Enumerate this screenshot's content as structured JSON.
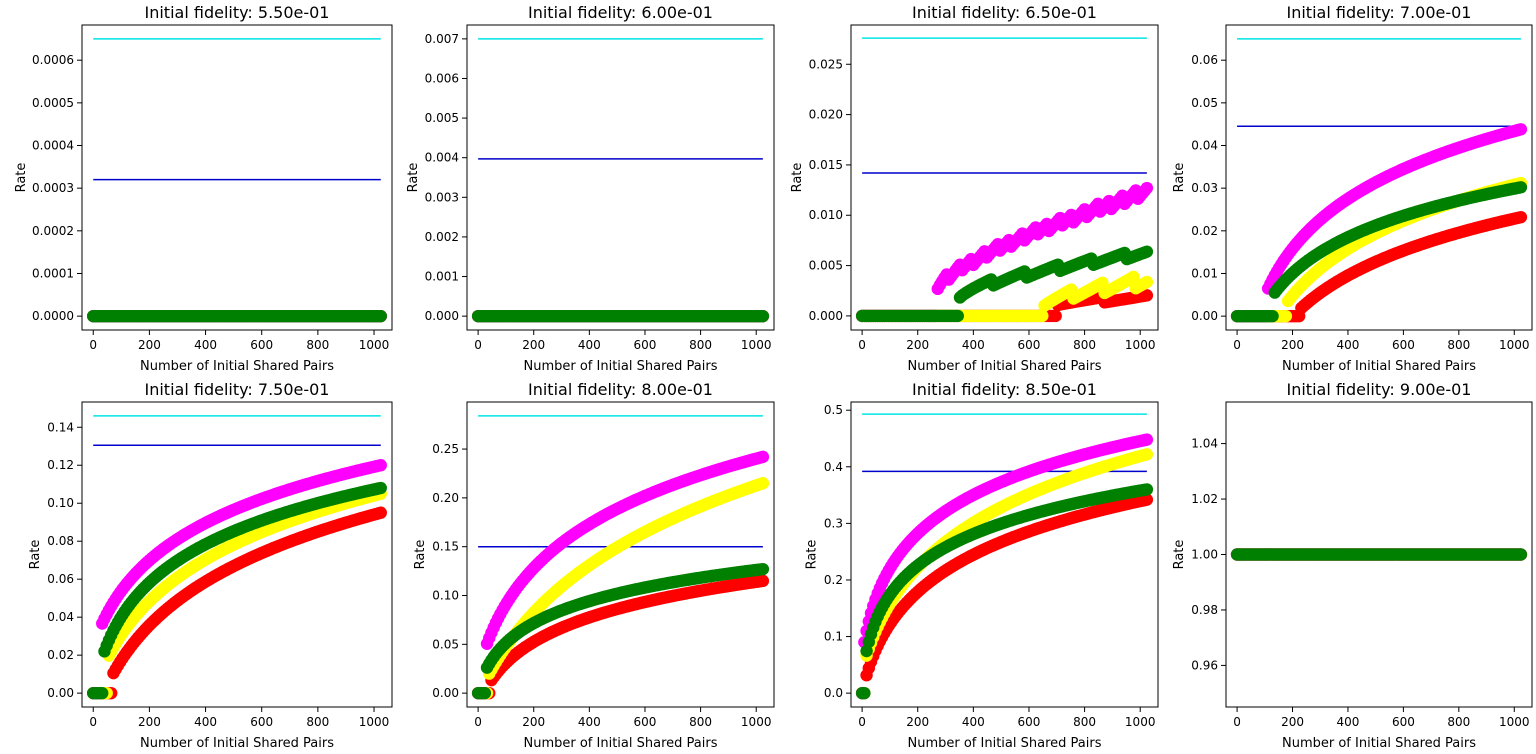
{
  "colors": {
    "magenta": "#ff00ff",
    "yellow": "#ffff00",
    "green": "#008000",
    "red": "#ff0000",
    "cyan": "#00e5e5",
    "blue": "#0000cc"
  },
  "chart_data": [
    {
      "type": "scatter",
      "title": "Initial fidelity: 5.50e-01",
      "xlabel": "Number of Initial Shared Pairs",
      "ylabel": "Rate",
      "xlim": [
        -40,
        1064
      ],
      "ylim": [
        -3.25e-05,
        0.0006825
      ],
      "xticks": [
        0,
        200,
        400,
        600,
        800,
        1000
      ],
      "xtick_labels": [
        "0",
        "200",
        "400",
        "600",
        "800",
        "1000"
      ],
      "yticks": [
        0,
        0.0001,
        0.0002,
        0.0003,
        0.0004,
        0.0005,
        0.0006
      ],
      "ytick_labels": [
        "0.0000",
        "0.0001",
        "0.0002",
        "0.0003",
        "0.0004",
        "0.0005",
        "0.0006"
      ],
      "hlines": [
        {
          "name": "cyan",
          "color": "cyan",
          "y": 0.00065,
          "x": [
            0,
            1024
          ]
        },
        {
          "name": "blue",
          "color": "blue",
          "y": 0.00032,
          "x": [
            0,
            1024
          ]
        }
      ],
      "series": [
        {
          "name": "red",
          "color": "red",
          "x0": 0,
          "curve": {
            "kind": "constant",
            "value": 0
          }
        },
        {
          "name": "yellow",
          "color": "yellow",
          "x0": 0,
          "curve": {
            "kind": "constant",
            "value": 0
          }
        },
        {
          "name": "magenta",
          "color": "magenta",
          "x0": 0,
          "curve": {
            "kind": "constant",
            "value": 0
          }
        },
        {
          "name": "green",
          "color": "green",
          "x0": 0,
          "curve": {
            "kind": "constant",
            "value": 0
          }
        }
      ]
    },
    {
      "type": "scatter",
      "title": "Initial fidelity: 6.00e-01",
      "xlabel": "Number of Initial Shared Pairs",
      "ylabel": "Rate",
      "xlim": [
        -40,
        1064
      ],
      "ylim": [
        -0.00035,
        0.00735
      ],
      "xticks": [
        0,
        200,
        400,
        600,
        800,
        1000
      ],
      "xtick_labels": [
        "0",
        "200",
        "400",
        "600",
        "800",
        "1000"
      ],
      "yticks": [
        0,
        0.001,
        0.002,
        0.003,
        0.004,
        0.005,
        0.006,
        0.007
      ],
      "ytick_labels": [
        "0.000",
        "0.001",
        "0.002",
        "0.003",
        "0.004",
        "0.005",
        "0.006",
        "0.007"
      ],
      "hlines": [
        {
          "name": "cyan",
          "color": "cyan",
          "y": 0.007,
          "x": [
            0,
            1024
          ]
        },
        {
          "name": "blue",
          "color": "blue",
          "y": 0.00397,
          "x": [
            0,
            1024
          ]
        }
      ],
      "series": [
        {
          "name": "red",
          "color": "red",
          "x0": 0,
          "curve": {
            "kind": "constant",
            "value": 0
          }
        },
        {
          "name": "yellow",
          "color": "yellow",
          "x0": 0,
          "curve": {
            "kind": "constant",
            "value": 0
          }
        },
        {
          "name": "magenta",
          "color": "magenta",
          "x0": 0,
          "curve": {
            "kind": "constant",
            "value": 0
          }
        },
        {
          "name": "green",
          "color": "green",
          "x0": 0,
          "curve": {
            "kind": "constant",
            "value": 0
          }
        }
      ]
    },
    {
      "type": "scatter",
      "title": "Initial fidelity: 6.50e-01",
      "xlabel": "Number of Initial Shared Pairs",
      "ylabel": "Rate",
      "xlim": [
        -40,
        1064
      ],
      "ylim": [
        -0.0014,
        0.0289
      ],
      "xticks": [
        0,
        200,
        400,
        600,
        800,
        1000
      ],
      "xtick_labels": [
        "0",
        "200",
        "400",
        "600",
        "800",
        "1000"
      ],
      "yticks": [
        0,
        0.005,
        0.01,
        0.015,
        0.02,
        0.025
      ],
      "ytick_labels": [
        "0.000",
        "0.005",
        "0.010",
        "0.015",
        "0.020",
        "0.025"
      ],
      "hlines": [
        {
          "name": "cyan",
          "color": "cyan",
          "y": 0.0276,
          "x": [
            0,
            1024
          ]
        },
        {
          "name": "blue",
          "color": "blue",
          "y": 0.0142,
          "x": [
            0,
            1024
          ]
        }
      ],
      "series": [
        {
          "name": "red",
          "color": "red",
          "x0": 0,
          "curve": {
            "kind": "stair",
            "t0": 700,
            "a0": 0.0013,
            "a1": 0.0018,
            "per": 170,
            "s0": 0.0005,
            "s1": 0.0006
          }
        },
        {
          "name": "yellow",
          "color": "yellow",
          "x0": 0,
          "curve": {
            "kind": "stair",
            "t0": 650,
            "a0": 0.0013,
            "a1": 0.0035,
            "per": 110,
            "s0": 0.0009,
            "s1": 0.0013
          }
        },
        {
          "name": "magenta",
          "color": "magenta",
          "x0": 0,
          "curve": {
            "kind": "stair",
            "t0": 265,
            "a0": 0.0026,
            "a1": 0.0123,
            "per": 45,
            "s0": 0.0008,
            "s1": 0.0011
          }
        },
        {
          "name": "green",
          "color": "green",
          "x0": 0,
          "curve": {
            "kind": "stair",
            "t0": 350,
            "a0": 0.0021,
            "a1": 0.0063,
            "per": 120,
            "s0": 0.0007,
            "s1": 0.0007
          }
        }
      ]
    },
    {
      "type": "scatter",
      "title": "Initial fidelity: 7.00e-01",
      "xlabel": "Number of Initial Shared Pairs",
      "ylabel": "Rate",
      "xlim": [
        -40,
        1064
      ],
      "ylim": [
        -0.00325,
        0.06825
      ],
      "xticks": [
        0,
        200,
        400,
        600,
        800,
        1000
      ],
      "xtick_labels": [
        "0",
        "200",
        "400",
        "600",
        "800",
        "1000"
      ],
      "yticks": [
        0,
        0.01,
        0.02,
        0.03,
        0.04,
        0.05,
        0.06
      ],
      "ytick_labels": [
        "0.00",
        "0.01",
        "0.02",
        "0.03",
        "0.04",
        "0.05",
        "0.06"
      ],
      "hlines": [
        {
          "name": "cyan",
          "color": "cyan",
          "y": 0.065,
          "x": [
            0,
            1024
          ]
        },
        {
          "name": "blue",
          "color": "blue",
          "y": 0.0445,
          "x": [
            0,
            1024
          ]
        }
      ],
      "series": [
        {
          "name": "red",
          "color": "red",
          "x0": 0,
          "curve": {
            "kind": "log",
            "t0": 225,
            "v0": 0.0015,
            "v1": 0.0232,
            "k": 0.004
          }
        },
        {
          "name": "yellow",
          "color": "yellow",
          "x0": 0,
          "curve": {
            "kind": "log",
            "t0": 180,
            "v0": 0.0032,
            "v1": 0.0312,
            "k": 0.005
          }
        },
        {
          "name": "magenta",
          "color": "magenta",
          "x0": 0,
          "curve": {
            "kind": "log",
            "t0": 110,
            "v0": 0.0062,
            "v1": 0.0438,
            "k": 0.008
          }
        },
        {
          "name": "green",
          "color": "green",
          "x0": 0,
          "curve": {
            "kind": "log",
            "t0": 130,
            "v0": 0.005,
            "v1": 0.0302,
            "k": 0.007
          }
        }
      ]
    },
    {
      "type": "scatter",
      "title": "Initial fidelity: 7.50e-01",
      "xlabel": "Number of Initial Shared Pairs",
      "ylabel": "Rate",
      "xlim": [
        -40,
        1064
      ],
      "ylim": [
        -0.0073,
        0.1533
      ],
      "xticks": [
        0,
        200,
        400,
        600,
        800,
        1000
      ],
      "xtick_labels": [
        "0",
        "200",
        "400",
        "600",
        "800",
        "1000"
      ],
      "yticks": [
        0,
        0.02,
        0.04,
        0.06,
        0.08,
        0.1,
        0.12,
        0.14
      ],
      "ytick_labels": [
        "0.00",
        "0.02",
        "0.04",
        "0.06",
        "0.08",
        "0.10",
        "0.12",
        "0.14"
      ],
      "hlines": [
        {
          "name": "cyan",
          "color": "cyan",
          "y": 0.146,
          "x": [
            0,
            1024
          ]
        },
        {
          "name": "blue",
          "color": "blue",
          "y": 0.1305,
          "x": [
            0,
            1024
          ]
        }
      ],
      "series": [
        {
          "name": "red",
          "color": "red",
          "x0": 0,
          "curve": {
            "kind": "log",
            "t0": 70,
            "v0": 0.01,
            "v1": 0.095,
            "k": 0.006
          }
        },
        {
          "name": "yellow",
          "color": "yellow",
          "x0": 0,
          "curve": {
            "kind": "log",
            "t0": 50,
            "v0": 0.018,
            "v1": 0.105,
            "k": 0.007
          }
        },
        {
          "name": "magenta",
          "color": "magenta",
          "x0": 0,
          "curve": {
            "kind": "log",
            "t0": 30,
            "v0": 0.036,
            "v1": 0.12,
            "k": 0.009
          }
        },
        {
          "name": "green",
          "color": "green",
          "x0": 0,
          "curve": {
            "kind": "log",
            "t0": 40,
            "v0": 0.022,
            "v1": 0.108,
            "k": 0.012
          }
        }
      ]
    },
    {
      "type": "scatter",
      "title": "Initial fidelity: 8.00e-01",
      "xlabel": "Number of Initial Shared Pairs",
      "ylabel": "Rate",
      "xlim": [
        -40,
        1064
      ],
      "ylim": [
        -0.0142,
        0.2982
      ],
      "xticks": [
        0,
        200,
        400,
        600,
        800,
        1000
      ],
      "xtick_labels": [
        "0",
        "200",
        "400",
        "600",
        "800",
        "1000"
      ],
      "yticks": [
        0,
        0.05,
        0.1,
        0.15,
        0.2,
        0.25
      ],
      "ytick_labels": [
        "0.00",
        "0.05",
        "0.10",
        "0.15",
        "0.20",
        "0.25"
      ],
      "hlines": [
        {
          "name": "cyan",
          "color": "cyan",
          "y": 0.284,
          "x": [
            0,
            1024
          ]
        },
        {
          "name": "blue",
          "color": "blue",
          "y": 0.15,
          "x": [
            0,
            1024
          ]
        }
      ],
      "series": [
        {
          "name": "red",
          "color": "red",
          "x0": 0,
          "curve": {
            "kind": "log",
            "t0": 45,
            "v0": 0.012,
            "v1": 0.115,
            "k": 0.01
          }
        },
        {
          "name": "yellow",
          "color": "yellow",
          "x0": 0,
          "curve": {
            "kind": "log",
            "t0": 40,
            "v0": 0.02,
            "v1": 0.215,
            "k": 0.0045
          }
        },
        {
          "name": "magenta",
          "color": "magenta",
          "x0": 0,
          "curve": {
            "kind": "log",
            "t0": 25,
            "v0": 0.045,
            "v1": 0.242,
            "k": 0.01
          }
        },
        {
          "name": "green",
          "color": "green",
          "x0": 0,
          "curve": {
            "kind": "log",
            "t0": 30,
            "v0": 0.025,
            "v1": 0.127,
            "k": 0.015
          }
        }
      ]
    },
    {
      "type": "scatter",
      "title": "Initial fidelity: 8.50e-01",
      "xlabel": "Number of Initial Shared Pairs",
      "ylabel": "Rate",
      "xlim": [
        -40,
        1064
      ],
      "ylim": [
        -0.0245,
        0.5145
      ],
      "xticks": [
        0,
        200,
        400,
        600,
        800,
        1000
      ],
      "xtick_labels": [
        "0",
        "200",
        "400",
        "600",
        "800",
        "1000"
      ],
      "yticks": [
        0,
        0.1,
        0.2,
        0.3,
        0.4,
        0.5
      ],
      "ytick_labels": [
        "0.0",
        "0.1",
        "0.2",
        "0.3",
        "0.4",
        "0.5"
      ],
      "hlines": [
        {
          "name": "cyan",
          "color": "cyan",
          "y": 0.493,
          "x": [
            0,
            1024
          ]
        },
        {
          "name": "blue",
          "color": "blue",
          "y": 0.392,
          "x": [
            0,
            1024
          ]
        }
      ],
      "series": [
        {
          "name": "red",
          "color": "red",
          "x0": 0,
          "curve": {
            "kind": "log",
            "t0": 15,
            "v0": 0.03,
            "v1": 0.342,
            "k": 0.015
          }
        },
        {
          "name": "yellow",
          "color": "yellow",
          "x0": 0,
          "curve": {
            "kind": "log",
            "t0": 12,
            "v0": 0.06,
            "v1": 0.422,
            "k": 0.011
          }
        },
        {
          "name": "magenta",
          "color": "magenta",
          "x0": 0,
          "curve": {
            "kind": "log",
            "t0": 8,
            "v0": 0.09,
            "v1": 0.448,
            "k": 0.025
          }
        },
        {
          "name": "green",
          "color": "green",
          "x0": 0,
          "curve": {
            "kind": "log",
            "t0": 10,
            "v0": 0.06,
            "v1": 0.36,
            "k": 0.03
          }
        }
      ]
    },
    {
      "type": "scatter",
      "title": "Initial fidelity: 9.00e-01",
      "xlabel": "Number of Initial Shared Pairs",
      "ylabel": "Rate",
      "xlim": [
        -40,
        1064
      ],
      "ylim": [
        0.945,
        1.055
      ],
      "xticks": [
        0,
        200,
        400,
        600,
        800,
        1000
      ],
      "xtick_labels": [
        "0",
        "200",
        "400",
        "600",
        "800",
        "1000"
      ],
      "yticks": [
        0.96,
        0.98,
        1.0,
        1.02,
        1.04
      ],
      "ytick_labels": [
        "0.96",
        "0.98",
        "1.00",
        "1.02",
        "1.04"
      ],
      "hlines": [
        {
          "name": "cyan",
          "color": "cyan",
          "y": 1.0,
          "x": [
            0,
            1024
          ]
        },
        {
          "name": "blue",
          "color": "blue",
          "y": 1.0,
          "x": [
            0,
            1024
          ]
        }
      ],
      "series": [
        {
          "name": "red",
          "color": "red",
          "x0": 0,
          "curve": {
            "kind": "constant",
            "value": 1.0
          }
        },
        {
          "name": "yellow",
          "color": "yellow",
          "x0": 0,
          "curve": {
            "kind": "constant",
            "value": 1.0
          }
        },
        {
          "name": "magenta",
          "color": "magenta",
          "x0": 0,
          "curve": {
            "kind": "constant",
            "value": 1.0
          }
        },
        {
          "name": "green",
          "color": "green",
          "x0": 0,
          "curve": {
            "kind": "constant",
            "value": 1.0
          }
        }
      ]
    }
  ]
}
